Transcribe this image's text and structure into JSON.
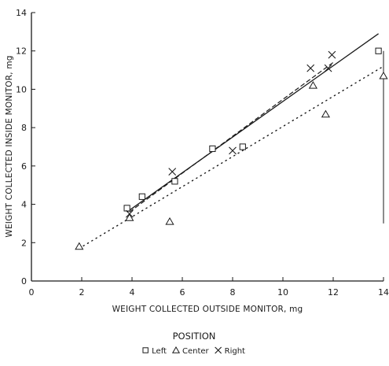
{
  "chart_data": {
    "type": "scatter",
    "title": "",
    "xlabel": "WEIGHT COLLECTED OUTSIDE MONITOR, mg",
    "ylabel": "WEIGHT COLLECTED INSIDE MONITOR, mg",
    "xlim": [
      0,
      14
    ],
    "ylim": [
      0,
      14
    ],
    "xticks": [
      "0",
      "2",
      "4",
      "6",
      "8",
      "10",
      "12",
      "14"
    ],
    "yticks": [
      "0",
      "2",
      "4",
      "6",
      "8",
      "10",
      "12",
      "14"
    ],
    "grid": false,
    "legend": {
      "title": "POSITION",
      "placement": "bottom-center",
      "items": [
        "Left",
        "Center",
        "Right"
      ]
    },
    "series": [
      {
        "name": "Left",
        "marker": "square",
        "points": [
          [
            3.8,
            3.8
          ],
          [
            4.4,
            4.4
          ],
          [
            5.7,
            5.2
          ],
          [
            7.2,
            6.9
          ],
          [
            8.4,
            7.0
          ],
          [
            13.8,
            12.0
          ]
        ],
        "fit": {
          "style": "solid",
          "from": [
            3.8,
            3.6
          ],
          "to": [
            13.8,
            12.9
          ]
        }
      },
      {
        "name": "Center",
        "marker": "triangle",
        "points": [
          [
            1.9,
            1.8
          ],
          [
            3.9,
            3.3
          ],
          [
            5.5,
            3.1
          ],
          [
            11.2,
            10.2
          ],
          [
            11.7,
            8.7
          ],
          [
            14.0,
            10.7
          ]
        ],
        "fit": {
          "style": "dotted",
          "from": [
            1.9,
            1.7
          ],
          "to": [
            14.0,
            11.2
          ]
        }
      },
      {
        "name": "Right",
        "marker": "x",
        "points": [
          [
            3.9,
            3.5
          ],
          [
            5.6,
            5.7
          ],
          [
            8.0,
            6.8
          ],
          [
            11.1,
            11.1
          ],
          [
            11.8,
            11.1
          ],
          [
            11.95,
            11.8
          ]
        ],
        "fit": {
          "style": "dashed",
          "from": [
            3.9,
            3.6
          ],
          "to": [
            12.0,
            11.4
          ]
        }
      }
    ]
  }
}
